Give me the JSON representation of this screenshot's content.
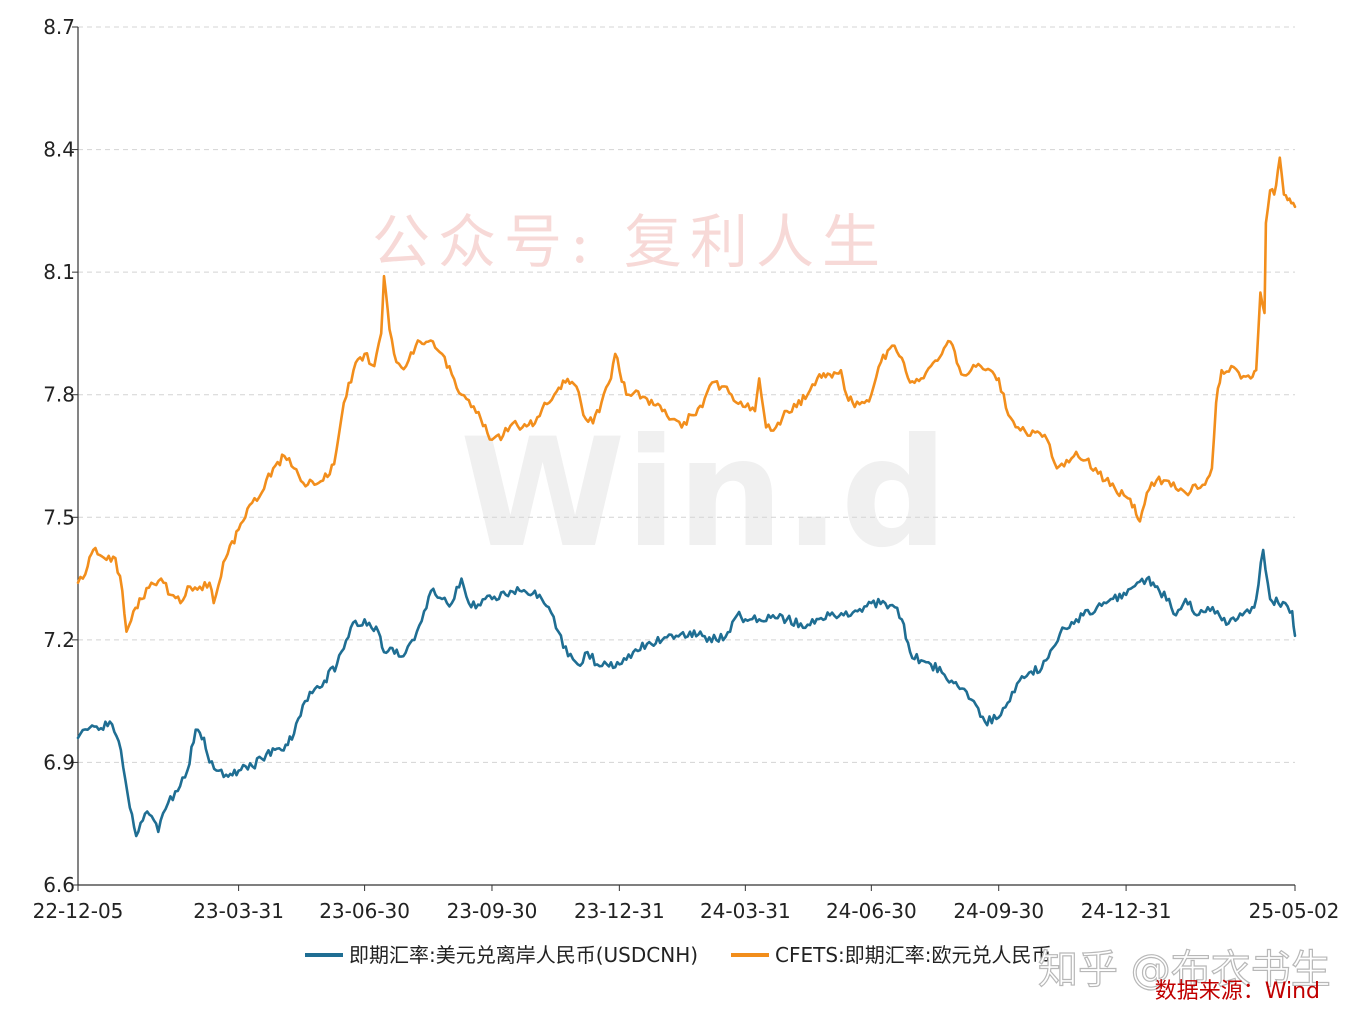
{
  "chart_data": {
    "type": "line",
    "title": "",
    "xlabel": "",
    "ylabel": "",
    "ylim": [
      6.6,
      8.7
    ],
    "yticks": [
      6.6,
      6.9,
      7.2,
      7.5,
      7.8,
      8.1,
      8.4,
      8.7
    ],
    "ytick_labels": [
      "6.6",
      "6.9",
      "7.2",
      "7.5",
      "7.8",
      "8.1",
      "8.4",
      "8.7"
    ],
    "x_start": "2022-12-05",
    "x_end": "2025-05-02",
    "xticks": [
      "22-12-05",
      "23-03-31",
      "23-06-30",
      "23-09-30",
      "23-12-31",
      "24-03-31",
      "24-06-30",
      "24-09-30",
      "24-12-31",
      "25-05-02"
    ],
    "xtick_dates": [
      "2022-12-05",
      "2023-03-31",
      "2023-06-30",
      "2023-09-30",
      "2023-12-31",
      "2024-03-31",
      "2024-06-30",
      "2024-09-30",
      "2024-12-31",
      "2025-05-02"
    ],
    "grid": true,
    "legend_position": "bottom",
    "series": [
      {
        "name": "即期汇率:美元兑离岸人民币(USDCNH)",
        "color": "#1f6e93",
        "points": [
          [
            "2022-12-05",
            6.96
          ],
          [
            "2022-12-12",
            6.98
          ],
          [
            "2022-12-20",
            6.98
          ],
          [
            "2022-12-28",
            7.0
          ],
          [
            "2023-01-05",
            6.93
          ],
          [
            "2023-01-10",
            6.82
          ],
          [
            "2023-01-16",
            6.72
          ],
          [
            "2023-01-24",
            6.78
          ],
          [
            "2023-02-01",
            6.73
          ],
          [
            "2023-02-08",
            6.8
          ],
          [
            "2023-02-15",
            6.83
          ],
          [
            "2023-02-22",
            6.88
          ],
          [
            "2023-02-28",
            6.98
          ],
          [
            "2023-03-06",
            6.96
          ],
          [
            "2023-03-10",
            6.9
          ],
          [
            "2023-03-15",
            6.88
          ],
          [
            "2023-03-22",
            6.87
          ],
          [
            "2023-03-31",
            6.88
          ],
          [
            "2023-04-10",
            6.89
          ],
          [
            "2023-04-20",
            6.92
          ],
          [
            "2023-05-01",
            6.93
          ],
          [
            "2023-05-10",
            6.97
          ],
          [
            "2023-05-18",
            7.05
          ],
          [
            "2023-05-25",
            7.08
          ],
          [
            "2023-06-01",
            7.1
          ],
          [
            "2023-06-10",
            7.14
          ],
          [
            "2023-06-20",
            7.23
          ],
          [
            "2023-06-30",
            7.25
          ],
          [
            "2023-07-10",
            7.22
          ],
          [
            "2023-07-14",
            7.17
          ],
          [
            "2023-07-20",
            7.18
          ],
          [
            "2023-07-28",
            7.16
          ],
          [
            "2023-08-05",
            7.2
          ],
          [
            "2023-08-12",
            7.27
          ],
          [
            "2023-08-17",
            7.32
          ],
          [
            "2023-08-25",
            7.3
          ],
          [
            "2023-09-01",
            7.29
          ],
          [
            "2023-09-08",
            7.35
          ],
          [
            "2023-09-15",
            7.28
          ],
          [
            "2023-09-25",
            7.3
          ],
          [
            "2023-09-30",
            7.3
          ],
          [
            "2023-10-10",
            7.31
          ],
          [
            "2023-10-20",
            7.32
          ],
          [
            "2023-10-31",
            7.32
          ],
          [
            "2023-11-05",
            7.3
          ],
          [
            "2023-11-10",
            7.28
          ],
          [
            "2023-11-17",
            7.22
          ],
          [
            "2023-11-24",
            7.16
          ],
          [
            "2023-12-01",
            7.14
          ],
          [
            "2023-12-08",
            7.17
          ],
          [
            "2023-12-15",
            7.14
          ],
          [
            "2023-12-22",
            7.14
          ],
          [
            "2023-12-31",
            7.14
          ],
          [
            "2024-01-10",
            7.17
          ],
          [
            "2024-01-20",
            7.19
          ],
          [
            "2024-01-31",
            7.2
          ],
          [
            "2024-02-10",
            7.21
          ],
          [
            "2024-02-20",
            7.22
          ],
          [
            "2024-02-29",
            7.21
          ],
          [
            "2024-03-10",
            7.2
          ],
          [
            "2024-03-20",
            7.22
          ],
          [
            "2024-03-25",
            7.26
          ],
          [
            "2024-03-31",
            7.25
          ],
          [
            "2024-04-10",
            7.25
          ],
          [
            "2024-04-20",
            7.26
          ],
          [
            "2024-04-30",
            7.25
          ],
          [
            "2024-05-10",
            7.24
          ],
          [
            "2024-05-20",
            7.24
          ],
          [
            "2024-05-31",
            7.26
          ],
          [
            "2024-06-10",
            7.26
          ],
          [
            "2024-06-20",
            7.27
          ],
          [
            "2024-06-30",
            7.29
          ],
          [
            "2024-07-10",
            7.29
          ],
          [
            "2024-07-17",
            7.28
          ],
          [
            "2024-07-22",
            7.25
          ],
          [
            "2024-07-28",
            7.17
          ],
          [
            "2024-08-05",
            7.15
          ],
          [
            "2024-08-12",
            7.14
          ],
          [
            "2024-08-20",
            7.12
          ],
          [
            "2024-08-27",
            7.1
          ],
          [
            "2024-09-05",
            7.08
          ],
          [
            "2024-09-12",
            7.05
          ],
          [
            "2024-09-20",
            7.0
          ],
          [
            "2024-09-30",
            7.01
          ],
          [
            "2024-10-08",
            7.05
          ],
          [
            "2024-10-15",
            7.1
          ],
          [
            "2024-10-22",
            7.12
          ],
          [
            "2024-10-31",
            7.13
          ],
          [
            "2024-11-08",
            7.18
          ],
          [
            "2024-11-15",
            7.23
          ],
          [
            "2024-11-25",
            7.25
          ],
          [
            "2024-11-30",
            7.26
          ],
          [
            "2024-12-10",
            7.28
          ],
          [
            "2024-12-20",
            7.3
          ],
          [
            "2024-12-31",
            7.31
          ],
          [
            "2025-01-08",
            7.34
          ],
          [
            "2025-01-15",
            7.35
          ],
          [
            "2025-01-24",
            7.32
          ],
          [
            "2025-01-31",
            7.3
          ],
          [
            "2025-02-05",
            7.26
          ],
          [
            "2025-02-12",
            7.3
          ],
          [
            "2025-02-20",
            7.26
          ],
          [
            "2025-02-28",
            7.28
          ],
          [
            "2025-03-07",
            7.27
          ],
          [
            "2025-03-15",
            7.24
          ],
          [
            "2025-03-25",
            7.26
          ],
          [
            "2025-04-01",
            7.28
          ],
          [
            "2025-04-04",
            7.3
          ],
          [
            "2025-04-09",
            7.42
          ],
          [
            "2025-04-14",
            7.3
          ],
          [
            "2025-04-20",
            7.29
          ],
          [
            "2025-04-25",
            7.29
          ],
          [
            "2025-04-30",
            7.27
          ],
          [
            "2025-05-02",
            7.21
          ]
        ]
      },
      {
        "name": "CFETS:即期汇率:欧元兑人民币",
        "color": "#f28e1c",
        "points": [
          [
            "2022-12-05",
            7.34
          ],
          [
            "2022-12-12",
            7.38
          ],
          [
            "2022-12-16",
            7.42
          ],
          [
            "2022-12-24",
            7.4
          ],
          [
            "2023-01-01",
            7.4
          ],
          [
            "2023-01-06",
            7.32
          ],
          [
            "2023-01-09",
            7.22
          ],
          [
            "2023-01-14",
            7.27
          ],
          [
            "2023-01-20",
            7.3
          ],
          [
            "2023-01-27",
            7.34
          ],
          [
            "2023-02-03",
            7.35
          ],
          [
            "2023-02-10",
            7.31
          ],
          [
            "2023-02-17",
            7.29
          ],
          [
            "2023-02-24",
            7.33
          ],
          [
            "2023-03-03",
            7.33
          ],
          [
            "2023-03-10",
            7.34
          ],
          [
            "2023-03-13",
            7.29
          ],
          [
            "2023-03-20",
            7.39
          ],
          [
            "2023-03-31",
            7.47
          ],
          [
            "2023-04-08",
            7.53
          ],
          [
            "2023-04-15",
            7.55
          ],
          [
            "2023-04-25",
            7.62
          ],
          [
            "2023-05-03",
            7.65
          ],
          [
            "2023-05-10",
            7.62
          ],
          [
            "2023-05-20",
            7.58
          ],
          [
            "2023-05-31",
            7.59
          ],
          [
            "2023-06-08",
            7.63
          ],
          [
            "2023-06-15",
            7.78
          ],
          [
            "2023-06-22",
            7.86
          ],
          [
            "2023-06-30",
            7.9
          ],
          [
            "2023-07-07",
            7.87
          ],
          [
            "2023-07-12",
            7.95
          ],
          [
            "2023-07-14",
            8.09
          ],
          [
            "2023-07-18",
            7.96
          ],
          [
            "2023-07-23",
            7.88
          ],
          [
            "2023-07-30",
            7.87
          ],
          [
            "2023-08-06",
            7.92
          ],
          [
            "2023-08-15",
            7.93
          ],
          [
            "2023-08-25",
            7.9
          ],
          [
            "2023-09-01",
            7.85
          ],
          [
            "2023-09-08",
            7.8
          ],
          [
            "2023-09-15",
            7.77
          ],
          [
            "2023-09-22",
            7.74
          ],
          [
            "2023-09-30",
            7.69
          ],
          [
            "2023-10-08",
            7.7
          ],
          [
            "2023-10-15",
            7.73
          ],
          [
            "2023-10-22",
            7.72
          ],
          [
            "2023-10-31",
            7.73
          ],
          [
            "2023-11-07",
            7.78
          ],
          [
            "2023-11-14",
            7.8
          ],
          [
            "2023-11-22",
            7.83
          ],
          [
            "2023-11-30",
            7.82
          ],
          [
            "2023-12-05",
            7.75
          ],
          [
            "2023-12-12",
            7.73
          ],
          [
            "2023-12-18",
            7.78
          ],
          [
            "2023-12-25",
            7.84
          ],
          [
            "2023-12-28",
            7.9
          ],
          [
            "2024-01-05",
            7.8
          ],
          [
            "2024-01-12",
            7.81
          ],
          [
            "2024-01-20",
            7.79
          ],
          [
            "2024-01-31",
            7.76
          ],
          [
            "2024-02-07",
            7.74
          ],
          [
            "2024-02-14",
            7.72
          ],
          [
            "2024-02-21",
            7.75
          ],
          [
            "2024-02-29",
            7.77
          ],
          [
            "2024-03-07",
            7.83
          ],
          [
            "2024-03-14",
            7.82
          ],
          [
            "2024-03-21",
            7.8
          ],
          [
            "2024-03-31",
            7.77
          ],
          [
            "2024-04-07",
            7.76
          ],
          [
            "2024-04-10",
            7.84
          ],
          [
            "2024-04-15",
            7.72
          ],
          [
            "2024-04-22",
            7.72
          ],
          [
            "2024-04-30",
            7.76
          ],
          [
            "2024-05-07",
            7.77
          ],
          [
            "2024-05-15",
            7.8
          ],
          [
            "2024-05-22",
            7.84
          ],
          [
            "2024-05-31",
            7.85
          ],
          [
            "2024-06-08",
            7.86
          ],
          [
            "2024-06-12",
            7.8
          ],
          [
            "2024-06-18",
            7.77
          ],
          [
            "2024-06-25",
            7.78
          ],
          [
            "2024-06-30",
            7.8
          ],
          [
            "2024-07-07",
            7.88
          ],
          [
            "2024-07-15",
            7.92
          ],
          [
            "2024-07-22",
            7.89
          ],
          [
            "2024-07-28",
            7.83
          ],
          [
            "2024-08-05",
            7.84
          ],
          [
            "2024-08-12",
            7.87
          ],
          [
            "2024-08-20",
            7.9
          ],
          [
            "2024-08-26",
            7.93
          ],
          [
            "2024-09-03",
            7.85
          ],
          [
            "2024-09-10",
            7.86
          ],
          [
            "2024-09-17",
            7.87
          ],
          [
            "2024-09-24",
            7.86
          ],
          [
            "2024-09-30",
            7.84
          ],
          [
            "2024-10-07",
            7.75
          ],
          [
            "2024-10-14",
            7.72
          ],
          [
            "2024-10-21",
            7.7
          ],
          [
            "2024-10-28",
            7.71
          ],
          [
            "2024-11-04",
            7.69
          ],
          [
            "2024-11-11",
            7.62
          ],
          [
            "2024-11-18",
            7.64
          ],
          [
            "2024-11-25",
            7.66
          ],
          [
            "2024-12-02",
            7.64
          ],
          [
            "2024-12-09",
            7.62
          ],
          [
            "2024-12-16",
            7.59
          ],
          [
            "2024-12-23",
            7.57
          ],
          [
            "2024-12-31",
            7.55
          ],
          [
            "2025-01-06",
            7.53
          ],
          [
            "2025-01-10",
            7.49
          ],
          [
            "2025-01-15",
            7.56
          ],
          [
            "2025-01-22",
            7.59
          ],
          [
            "2025-01-29",
            7.59
          ],
          [
            "2025-02-05",
            7.57
          ],
          [
            "2025-02-12",
            7.56
          ],
          [
            "2025-02-19",
            7.58
          ],
          [
            "2025-02-26",
            7.58
          ],
          [
            "2025-03-03",
            7.62
          ],
          [
            "2025-03-06",
            7.78
          ],
          [
            "2025-03-10",
            7.86
          ],
          [
            "2025-03-17",
            7.87
          ],
          [
            "2025-03-24",
            7.84
          ],
          [
            "2025-03-31",
            7.84
          ],
          [
            "2025-04-04",
            7.86
          ],
          [
            "2025-04-07",
            8.05
          ],
          [
            "2025-04-10",
            8.0
          ],
          [
            "2025-04-11",
            8.22
          ],
          [
            "2025-04-14",
            8.3
          ],
          [
            "2025-04-17",
            8.29
          ],
          [
            "2025-04-21",
            8.38
          ],
          [
            "2025-04-24",
            8.29
          ],
          [
            "2025-04-28",
            8.28
          ],
          [
            "2025-05-02",
            8.26
          ]
        ]
      }
    ]
  },
  "watermarks": {
    "wechat": "公众号: 复利人生",
    "wind_logo": "Win.d",
    "zhihu": "知乎 @布衣书生"
  },
  "source_label": "数据来源：Wind"
}
